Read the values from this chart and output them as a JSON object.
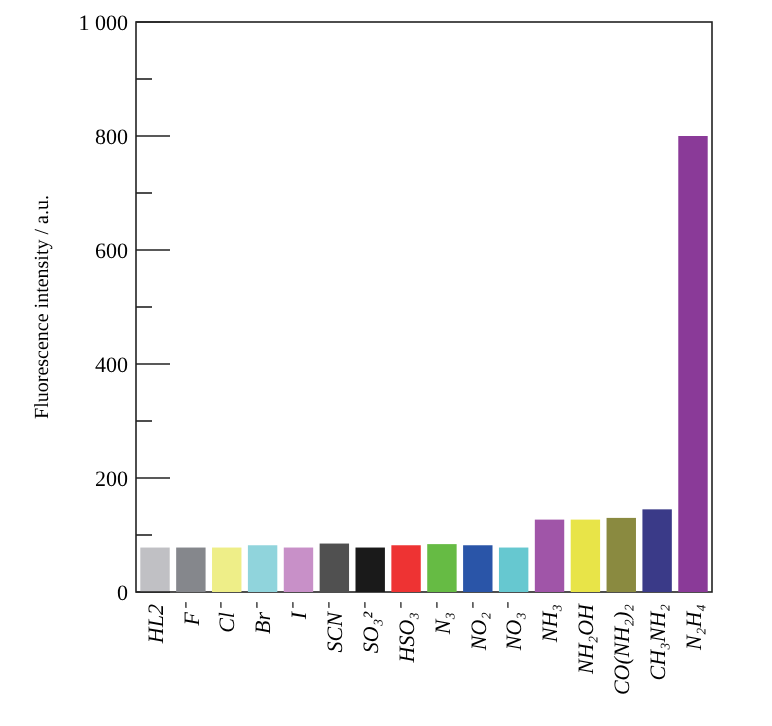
{
  "chart_data": {
    "type": "bar",
    "ylabel": "Fluorescence intensity / a.u.",
    "categories": [
      "HL2",
      "F⁻",
      "Cl⁻",
      "Br⁻",
      "I⁻",
      "SCN⁻",
      "SO₃²⁻",
      "HSO₃⁻",
      "N₃⁻",
      "NO₂⁻",
      "NO₃⁻",
      "NH₃",
      "NH₂OH",
      "CO(NH₂)₂",
      "CH₃NH₂",
      "N₂H₄"
    ],
    "values": [
      78,
      78,
      78,
      82,
      78,
      85,
      78,
      82,
      84,
      82,
      78,
      127,
      127,
      130,
      145,
      800
    ],
    "colors": [
      "#c0c0c4",
      "#85878c",
      "#eeee88",
      "#90d4dc",
      "#c890c8",
      "#505050",
      "#1a1a1a",
      "#ee3333",
      "#66bb44",
      "#2a55a8",
      "#66c8d0",
      "#a055a8",
      "#e8e448",
      "#8a8a40",
      "#3a3a88",
      "#8a3a98"
    ],
    "ylim": [
      0,
      1000
    ],
    "yticks": [
      0,
      {
        "value": 100,
        "label": null
      },
      200,
      {
        "value": 300,
        "label": null
      },
      400,
      {
        "value": 500,
        "label": null
      },
      600,
      {
        "value": 700,
        "label": null
      },
      800,
      {
        "value": 900,
        "label": null
      },
      {
        "value": 1000,
        "label": "1 000"
      }
    ],
    "grid": false
  }
}
